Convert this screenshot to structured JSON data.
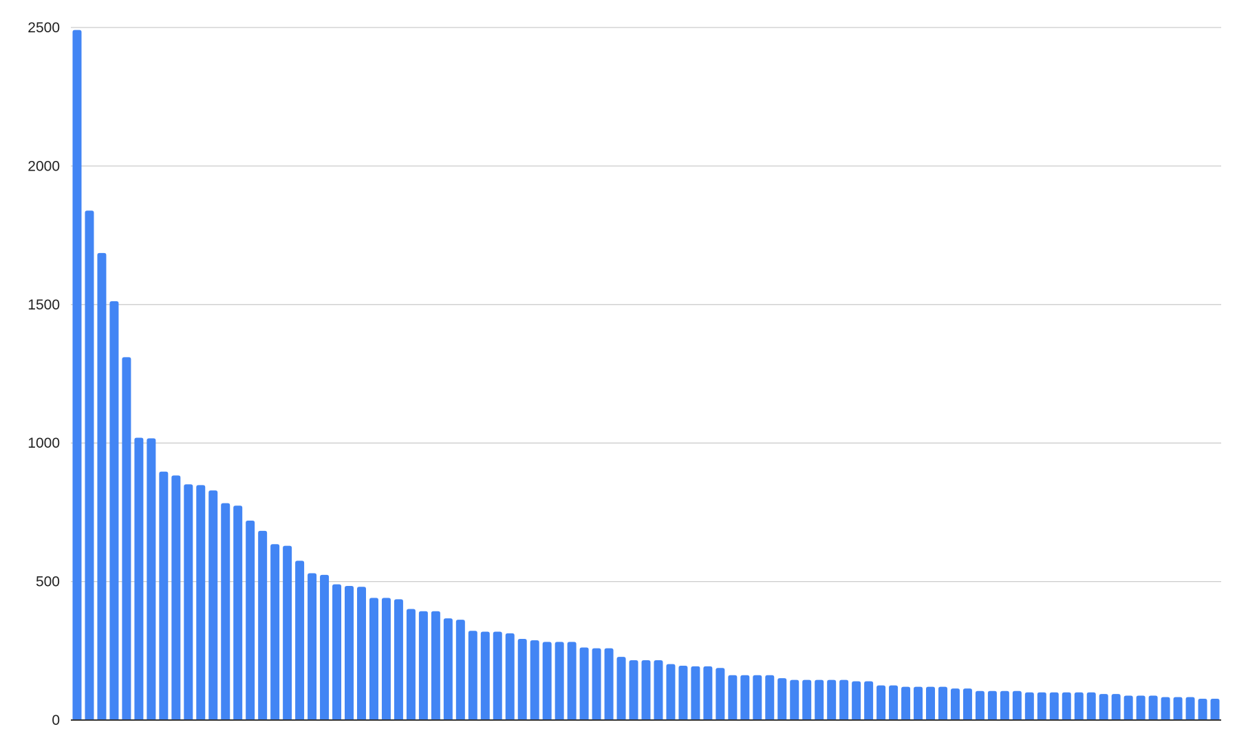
{
  "chart_data": {
    "type": "bar",
    "title": "",
    "xlabel": "",
    "ylabel": "",
    "ylim": [
      0,
      2500
    ],
    "yticks": [
      "0",
      "500",
      "1000",
      "1500",
      "2000",
      "2500"
    ],
    "grid": true,
    "legend": "none",
    "bar_color": "#4285f4",
    "gridline_color": "#cccccc",
    "axis_color": "#333333",
    "values": [
      2491,
      1839,
      1686,
      1512,
      1310,
      1019,
      1017,
      897,
      883,
      851,
      848,
      829,
      783,
      774,
      720,
      683,
      635,
      629,
      575,
      530,
      524,
      490,
      484,
      481,
      441,
      441,
      436,
      401,
      393,
      393,
      367,
      362,
      322,
      319,
      319,
      313,
      293,
      288,
      282,
      282,
      282,
      262,
      259,
      259,
      228,
      216,
      216,
      216,
      202,
      196,
      194,
      194,
      188,
      162,
      162,
      162,
      162,
      151,
      145,
      145,
      145,
      145,
      145,
      140,
      140,
      125,
      125,
      120,
      120,
      120,
      120,
      114,
      114,
      105,
      105,
      105,
      105,
      100,
      100,
      100,
      100,
      100,
      100,
      94,
      94,
      88,
      88,
      88,
      83,
      83,
      83,
      77,
      77
    ]
  }
}
